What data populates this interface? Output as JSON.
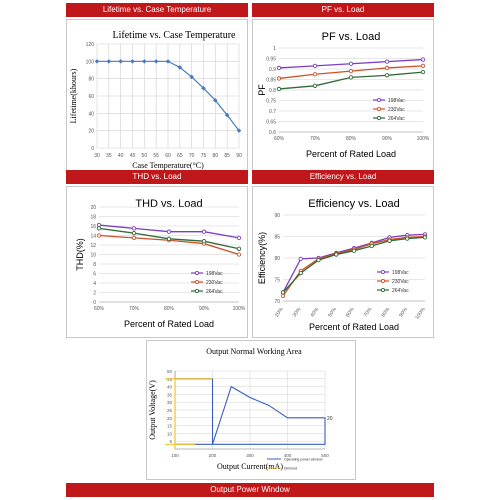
{
  "sections": {
    "lifetime_bar": "Lifetime vs. Case Temperature",
    "pf_bar": "PF vs. Load",
    "thd_bar": "THD vs. Load",
    "eff_bar": "Efficiency vs. Load",
    "power_bar": "Output Power Window"
  },
  "colors": {
    "bar_red": "#c0171b",
    "blue": "#4a7bbf",
    "purple": "#7d3fbf",
    "orange": "#d05028",
    "green": "#2f6b3a",
    "yellow": "#f2c32b",
    "grid": "#d0d0d0"
  },
  "chart_data": [
    {
      "id": "lifetime",
      "type": "line",
      "title": "Lifetime vs. Case Temperature",
      "xlabel": "Case Temperature(°C)",
      "ylabel": "Lifetime(khours)",
      "xlim": [
        30,
        90
      ],
      "ylim": [
        0,
        120
      ],
      "xticks": [
        30,
        35,
        40,
        45,
        50,
        55,
        60,
        65,
        70,
        75,
        80,
        85,
        90
      ],
      "yticks": [
        0,
        20,
        40,
        60,
        80,
        100,
        120
      ],
      "grid": true,
      "series": [
        {
          "color": "#4a7bbf",
          "x": [
            30,
            35,
            40,
            45,
            50,
            55,
            60,
            65,
            70,
            75,
            80,
            85,
            90
          ],
          "y": [
            100,
            100,
            100,
            100,
            100,
            100,
            100,
            93,
            82,
            69,
            55,
            38,
            20
          ]
        }
      ]
    },
    {
      "id": "pf",
      "type": "line",
      "title": "PF vs. Load",
      "xlabel": "Percent of Rated Load",
      "ylabel": "PF",
      "categories": [
        "60%",
        "70%",
        "80%",
        "90%",
        "100%"
      ],
      "ylim": [
        0.6,
        1.0
      ],
      "yticks": [
        "0.6",
        "0.65",
        "0.7",
        "0.75",
        "0.8",
        "0.85",
        "0.9",
        "0.95",
        "1"
      ],
      "grid": true,
      "legend": "right",
      "series": [
        {
          "name": "198Vac",
          "color": "#7d3fbf",
          "values": [
            0.905,
            0.915,
            0.925,
            0.935,
            0.945
          ]
        },
        {
          "name": "230Vac",
          "color": "#d05028",
          "values": [
            0.855,
            0.875,
            0.89,
            0.905,
            0.915
          ]
        },
        {
          "name": "264Vac",
          "color": "#2f6b3a",
          "values": [
            0.805,
            0.82,
            0.86,
            0.87,
            0.885
          ]
        }
      ]
    },
    {
      "id": "thd",
      "type": "line",
      "title": "THD vs. Load",
      "xlabel": "Percent of Rated Load",
      "ylabel": "THD(%)",
      "categories": [
        "60%",
        "70%",
        "80%",
        "90%",
        "100%"
      ],
      "ylim": [
        0,
        20
      ],
      "yticks": [
        "0",
        "2",
        "4",
        "6",
        "8",
        "10",
        "12",
        "14",
        "16",
        "18",
        "20"
      ],
      "grid": true,
      "legend": "right",
      "series": [
        {
          "name": "198Vac",
          "color": "#7d3fbf",
          "values": [
            16.2,
            15.5,
            14.8,
            14.8,
            13.5
          ]
        },
        {
          "name": "230Vac",
          "color": "#d05028",
          "values": [
            14.0,
            13.5,
            13.0,
            12.3,
            10.0
          ]
        },
        {
          "name": "264Vac",
          "color": "#2f6b3a",
          "values": [
            15.5,
            14.5,
            13.3,
            12.8,
            11.2
          ]
        }
      ]
    },
    {
      "id": "efficiency",
      "type": "line",
      "title": "Efficiency vs. Load",
      "xlabel": "Percent of Rated Load",
      "ylabel": "Efficiency(%)",
      "categories": [
        "20%",
        "30%",
        "40%",
        "50%",
        "60%",
        "70%",
        "80%",
        "90%",
        "100%"
      ],
      "ylim": [
        70,
        90
      ],
      "yticks": [
        "70",
        "75",
        "80",
        "85",
        "90"
      ],
      "grid": true,
      "legend": "right",
      "series": [
        {
          "name": "198Vac",
          "color": "#7d3fbf",
          "values": [
            72.0,
            79.8,
            80.0,
            81.2,
            82.3,
            83.5,
            84.8,
            85.3,
            85.5
          ]
        },
        {
          "name": "230Vac",
          "color": "#d05028",
          "values": [
            71.2,
            77.0,
            79.8,
            81.0,
            82.0,
            83.3,
            84.3,
            84.8,
            85.0
          ]
        },
        {
          "name": "264Vac",
          "color": "#2f6b3a",
          "values": [
            72.0,
            76.5,
            79.5,
            80.8,
            81.7,
            82.8,
            84.0,
            84.5,
            84.8
          ]
        }
      ]
    },
    {
      "id": "power_window",
      "type": "line",
      "title": "Output Normal Working Area",
      "xlabel": "Output Current(mA)",
      "ylabel": "Output Voltage(V)",
      "xlim": [
        100,
        500
      ],
      "ylim": [
        0,
        50
      ],
      "xticks": [
        100,
        200,
        300,
        400,
        500
      ],
      "yticks": [
        5,
        10,
        15,
        20,
        25,
        30,
        35,
        40,
        45,
        50
      ],
      "grid": true,
      "legend": "bottom-right",
      "annotation": "20",
      "series": [
        {
          "name": "Operating power window",
          "color": "#3a5fbf",
          "x": [
            100,
            200,
            200,
            250,
            300,
            350,
            400,
            500,
            500,
            100
          ],
          "y": [
            45,
            45,
            3,
            40,
            33,
            28,
            20,
            20,
            3,
            3
          ]
        },
        {
          "name": "Dimmed",
          "color": "#f2c32b",
          "x": [
            100,
            100,
            100
          ],
          "y": [
            0,
            45,
            3
          ]
        }
      ]
    }
  ]
}
